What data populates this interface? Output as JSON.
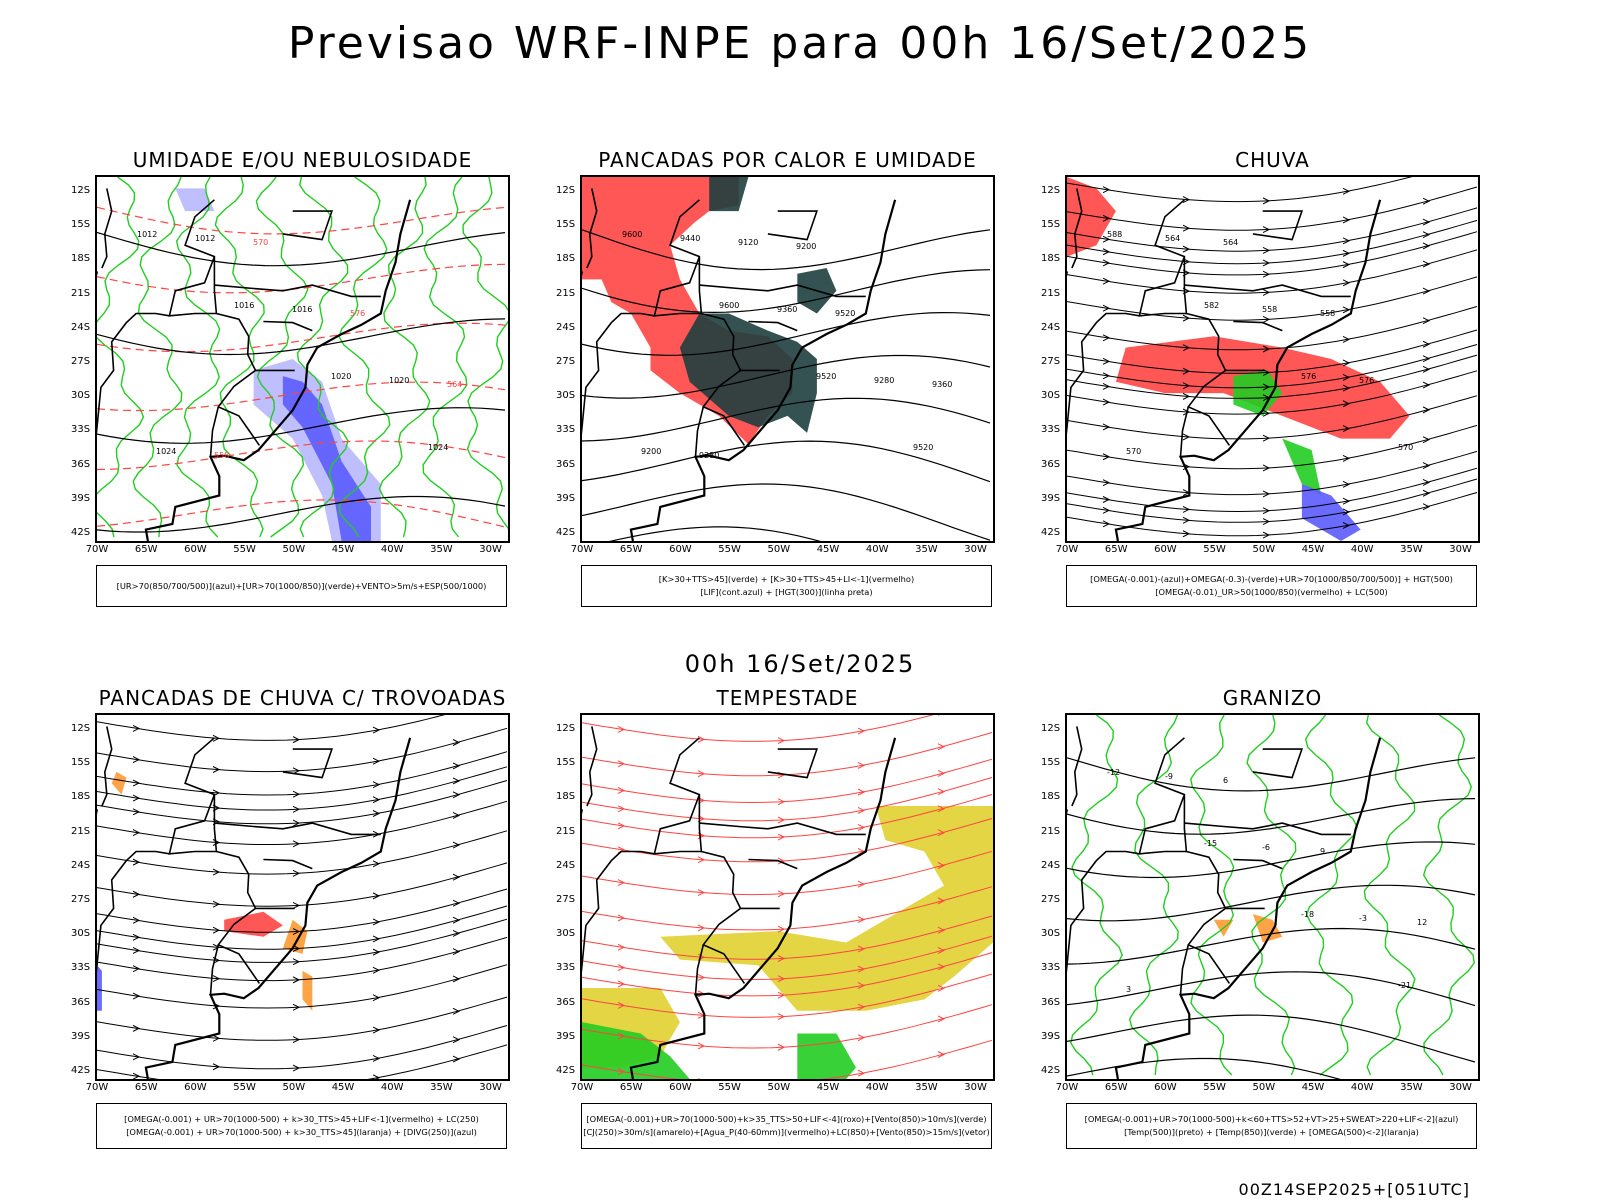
{
  "title": "Previsao WRF-INPE  para 00h 16/Set/2025",
  "mid_title": "00h 16/Set/2025",
  "footer": "00Z14SEP2025+[051UTC]",
  "lat_labels": [
    "12S",
    "15S",
    "18S",
    "21S",
    "24S",
    "27S",
    "30S",
    "33S",
    "36S",
    "39S",
    "42S"
  ],
  "lon_labels": [
    "70W",
    "65W",
    "60W",
    "55W",
    "50W",
    "45W",
    "40W",
    "35W",
    "30W"
  ],
  "colors": {
    "blue": "#5b5bff",
    "lightblue": "#b8b8ff",
    "green": "#22cc22",
    "red": "#ff4444",
    "darkgreen": "#1f3f3f",
    "yellow": "#e0d030",
    "orange": "#ff9933",
    "black": "#000000"
  },
  "panels": [
    {
      "title": "UMIDADE E/OU NEBULOSIDADE",
      "legend": [
        "[UR>70(850/700/500)](azul)+[UR>70(1000/850)](verde)+VENTO>5m/s+ESP(500/1000)"
      ],
      "contour_labels": [
        "1012",
        "1016",
        "1020",
        "1024",
        "1012",
        "1016",
        "1020",
        "1024",
        "570",
        "576",
        "564",
        "558"
      ]
    },
    {
      "title": "PANCADAS POR CALOR E UMIDADE",
      "legend": [
        "[K>30+TTS>45](verde) + [K>30+TTS>45+LI<-1](vermelho)",
        "[LIF](cont.azul) + [HGT(300)](linha preta)"
      ],
      "contour_labels": [
        "9600",
        "9600",
        "9520",
        "9520",
        "9440",
        "9360",
        "9280",
        "9200",
        "9120",
        "9520",
        "9360",
        "9280",
        "9200"
      ]
    },
    {
      "title": "CHUVA",
      "legend": [
        "[OMEGA(-0.001)-(azul)+OMEGA(-0.3)-(verde)+UR>70(1000/850/700/500)] + HGT(500)",
        "[OMEGA(-0.01)_UR>50(1000/850)(vermelho) + LC(500)"
      ],
      "contour_labels": [
        "588",
        "582",
        "576",
        "570",
        "564",
        "558",
        "576",
        "570",
        "564",
        "558"
      ]
    },
    {
      "title": "PANCADAS DE CHUVA C/ TROVOADAS",
      "legend": [
        "[OMEGA(-0.001) + UR>70(1000-500) + k>30_TTS>45+LIF<-1](vermelho) + LC(250)",
        "[OMEGA(-0.001) + UR>70(1000-500) + k>30_TTS>45](laranja) + [DIVG(250)](azul)"
      ],
      "contour_labels": []
    },
    {
      "title": "TEMPESTADE",
      "legend": [
        "[OMEGA(-0.001)+UR>70(1000-500)+k>35_TTS>50+LIF<-4](roxo)+[Vento(850)>10m/s](verde)",
        "[CJ(250)>30m/s](amarelo)+[Agua_P(40-60mm)](vermelho)+LC(850)+[Vento(850)>15m/s](vetor)"
      ],
      "contour_labels": []
    },
    {
      "title": "GRANIZO",
      "legend": [
        "[OMEGA(-0.001)+UR>70(1000-500)+k<60+TTS>52+VT>25+SWEAT>220+LIF<-2](azul)",
        "[Temp(500)](preto) + [Temp(850)](verde) + [OMEGA(500)<-2](laranja)"
      ],
      "contour_labels": [
        "-12",
        "-15",
        "-18",
        "-21",
        "-9",
        "-6",
        "-3",
        "3",
        "6",
        "9",
        "12"
      ]
    }
  ]
}
